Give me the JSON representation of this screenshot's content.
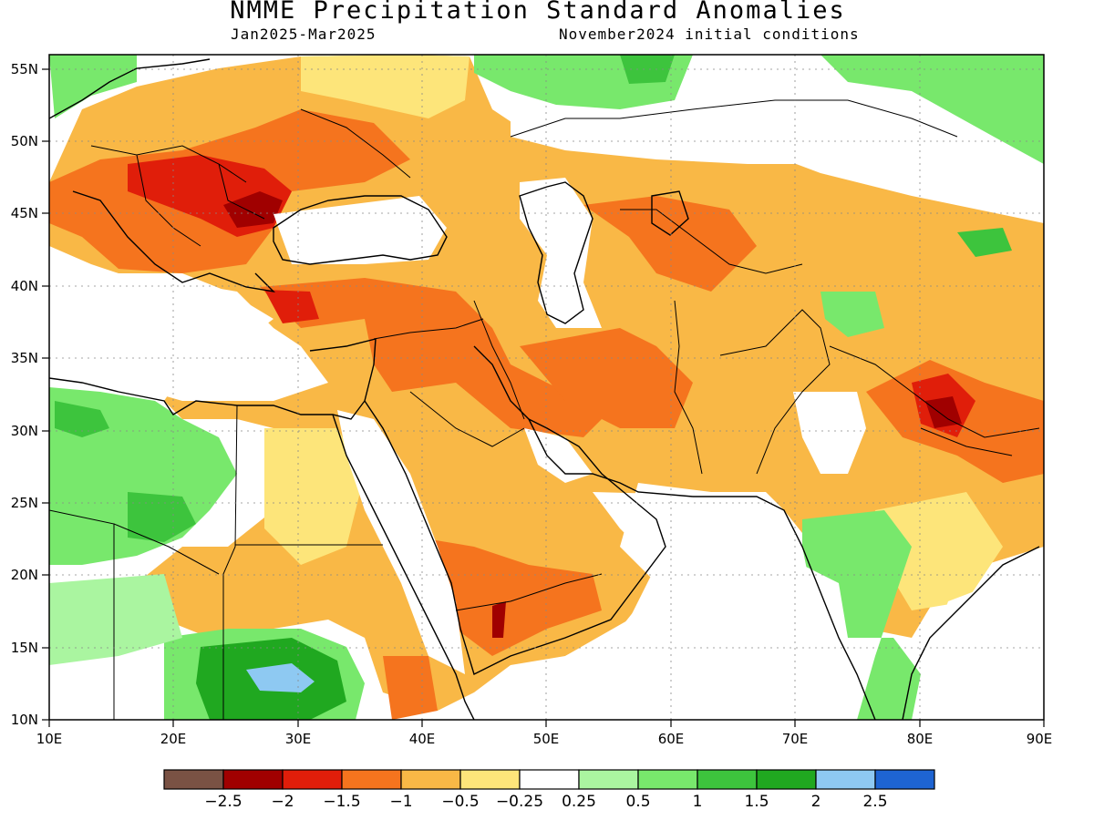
{
  "header": {
    "title": "NMME Precipitation Standard Anomalies",
    "period": "Jan2025-Mar2025",
    "initial_conditions": "November2024 initial conditions"
  },
  "axes": {
    "lon_ticks": [
      "10E",
      "20E",
      "30E",
      "40E",
      "50E",
      "60E",
      "70E",
      "80E",
      "90E"
    ],
    "lat_ticks": [
      "55N",
      "50N",
      "45N",
      "40N",
      "35N",
      "30N",
      "25N",
      "20N",
      "15N",
      "10N"
    ],
    "lon_range": [
      10,
      90
    ],
    "lat_range": [
      10,
      56
    ]
  },
  "colorbar": {
    "colors": [
      "#7a5244",
      "#a00000",
      "#e01e0a",
      "#f5741e",
      "#f9b846",
      "#fde57a",
      "#ffffff",
      "#aaf5a0",
      "#78e86c",
      "#3dc43d",
      "#20a820",
      "#8ec9f2",
      "#1e64d2"
    ],
    "labels": [
      "-2.5",
      "-2",
      "-1.5",
      "-1",
      "-0.5",
      "-0.25",
      "0.25",
      "0.5",
      "1",
      "1.5",
      "2",
      "2.5"
    ]
  },
  "anomaly_classes": {
    "orange_light": "-0.5",
    "orange": "-1",
    "orange_dark": "-1.5",
    "red": "-2",
    "green_light": "0.5",
    "green": "1",
    "green_dark": "1.5",
    "green_deep": "2",
    "blue": "2.5"
  }
}
